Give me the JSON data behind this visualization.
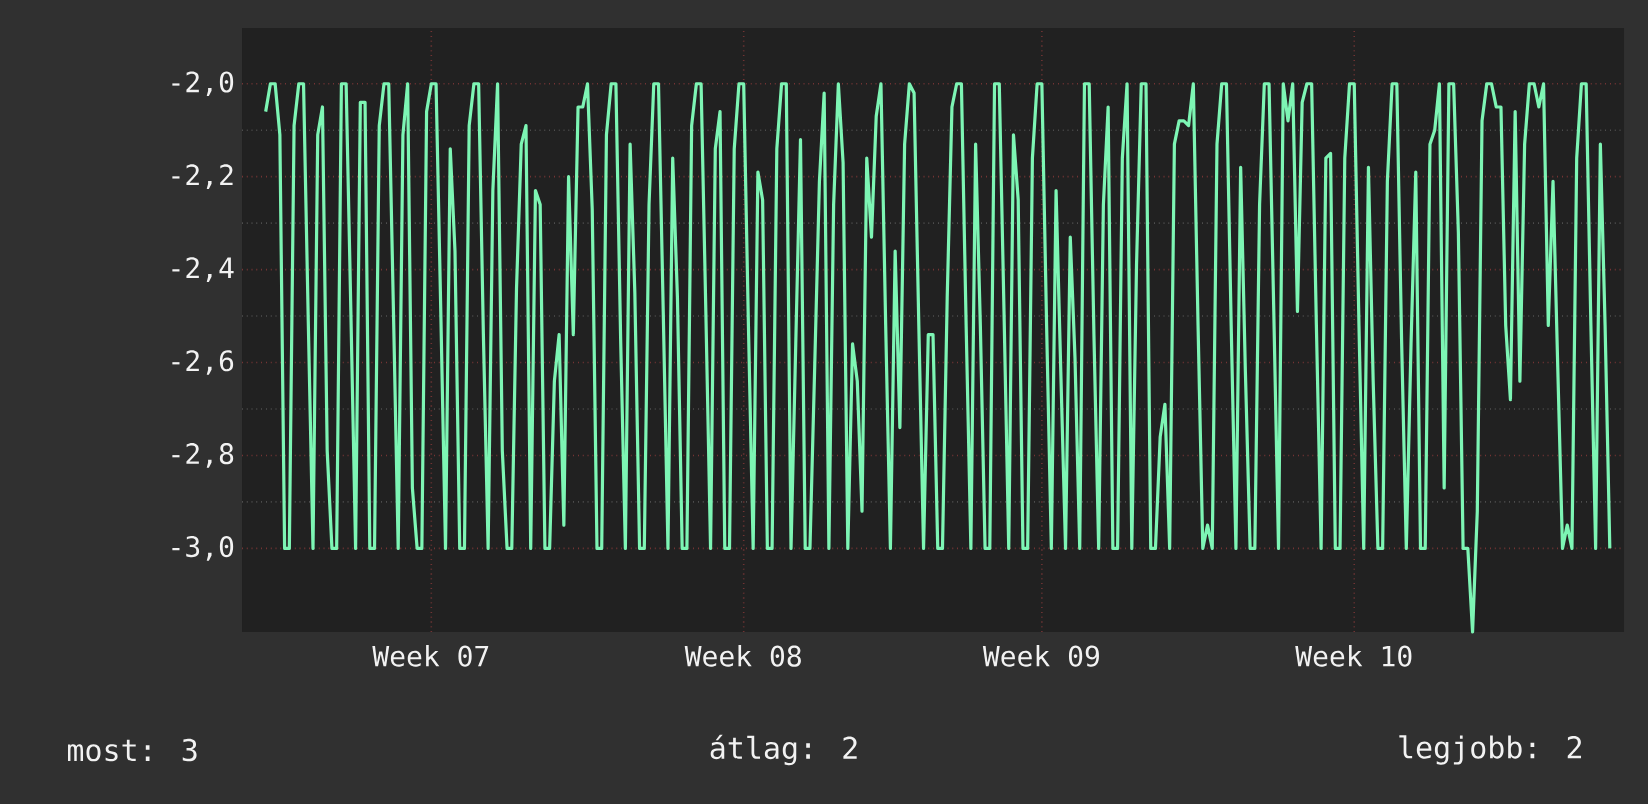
{
  "chart_data": {
    "type": "line",
    "categories": [
      null,
      null,
      null,
      null,
      null,
      null,
      null,
      null,
      null,
      null,
      null,
      null,
      null,
      null,
      null,
      null,
      null,
      null,
      null,
      null,
      null,
      null,
      null,
      null,
      null,
      null,
      null,
      null,
      null,
      null,
      null,
      null,
      null,
      null,
      null,
      "Week 07",
      null,
      null,
      null,
      null,
      null,
      null,
      null,
      null,
      null,
      null,
      null,
      null,
      null,
      null,
      null,
      null,
      null,
      null,
      null,
      null,
      null,
      null,
      null,
      null,
      null,
      null,
      null,
      null,
      null,
      null,
      null,
      null,
      null,
      null,
      null,
      null,
      null,
      null,
      null,
      null,
      null,
      null,
      null,
      null,
      null,
      null,
      null,
      null,
      null,
      null,
      null,
      null,
      null,
      null,
      null,
      null,
      null,
      null,
      null,
      null,
      null,
      null,
      null,
      null,
      null,
      "Week 08",
      null,
      null,
      null,
      null,
      null,
      null,
      null,
      null,
      null,
      null,
      null,
      null,
      null,
      null,
      null,
      null,
      null,
      null,
      null,
      null,
      null,
      null,
      null,
      null,
      null,
      null,
      null,
      null,
      null,
      null,
      null,
      null,
      null,
      null,
      null,
      null,
      null,
      null,
      null,
      null,
      null,
      null,
      null,
      null,
      null,
      null,
      null,
      null,
      null,
      null,
      null,
      null,
      null,
      null,
      null,
      null,
      null,
      null,
      null,
      null,
      null,
      null,
      "Week 09",
      null,
      null,
      null,
      null,
      null,
      null,
      null,
      null,
      null,
      null,
      null,
      null,
      null,
      null,
      null,
      null,
      null,
      null,
      null,
      null,
      null,
      null,
      null,
      null,
      null,
      null,
      null,
      null,
      null,
      null,
      null,
      null,
      null,
      null,
      null,
      null,
      null,
      null,
      null,
      null,
      null,
      null,
      null,
      null,
      null,
      null,
      null,
      null,
      null,
      null,
      null,
      null,
      null,
      null,
      null,
      null,
      null,
      null,
      null,
      null,
      null,
      null,
      null,
      null,
      null,
      "Week 10",
      null,
      null,
      null,
      null,
      null,
      null,
      null,
      null,
      null,
      null,
      null,
      null,
      null,
      null,
      null,
      null,
      null,
      null,
      null,
      null,
      null,
      null,
      null,
      null,
      null,
      null,
      null,
      null,
      null,
      null,
      null,
      null,
      null,
      null,
      null,
      null,
      null,
      null,
      null,
      null,
      null,
      null,
      null,
      null,
      null,
      null,
      null,
      null,
      null,
      null,
      null,
      null,
      null,
      null
    ],
    "ylim": [
      -3.18,
      -1.88
    ],
    "yticks": [
      {
        "value": -3,
        "label": "-3,0"
      },
      {
        "value": -2.8,
        "label": "-2,8"
      },
      {
        "value": -2.6,
        "label": "-2,6"
      },
      {
        "value": -2.4,
        "label": "-2,4"
      },
      {
        "value": -2.2,
        "label": "-2,2"
      },
      {
        "value": -2,
        "label": "-2,0"
      }
    ],
    "grid": true,
    "annotations": [
      "most: 3",
      "átlag: 2",
      "legjobb: 2"
    ],
    "series": [
      {
        "color": "#7df5b4",
        "values": [
          -2.06,
          -2,
          -2,
          -2.11,
          -3,
          -3,
          -2.09,
          -2,
          -2,
          -2.51,
          -3,
          -2.11,
          -2.05,
          -2.79,
          -3,
          -3,
          -2,
          -2,
          -2.49,
          -3,
          -2.04,
          -2.04,
          -3,
          -3,
          -2.09,
          -2,
          -2,
          -2.49,
          -3,
          -2.11,
          -2,
          -2.87,
          -3,
          -3,
          -2.06,
          -2,
          -2,
          -2.49,
          -3,
          -2.14,
          -2.36,
          -3,
          -3,
          -2.09,
          -2,
          -2,
          -2.54,
          -3,
          -2.23,
          -2,
          -2.79,
          -3,
          -3,
          -2.44,
          -2.13,
          -2.09,
          -3,
          -2.23,
          -2.26,
          -3,
          -3,
          -2.64,
          -2.54,
          -2.95,
          -2.2,
          -2.54,
          -2.05,
          -2.05,
          -2,
          -2.27,
          -3,
          -3,
          -2.11,
          -2,
          -2,
          -2.55,
          -3,
          -2.13,
          -2.45,
          -3,
          -3,
          -2.26,
          -2,
          -2,
          -2.49,
          -3,
          -2.16,
          -2.46,
          -3,
          -3,
          -2.09,
          -2,
          -2,
          -2.49,
          -3,
          -2.14,
          -2.06,
          -3,
          -3,
          -2.14,
          -2,
          -2,
          -2.52,
          -3,
          -2.19,
          -2.25,
          -3,
          -3,
          -2.14,
          -2,
          -2,
          -3,
          -2.56,
          -2.12,
          -3,
          -3,
          -2.61,
          -2.21,
          -2.02,
          -3,
          -2.26,
          -2,
          -2.17,
          -3,
          -2.56,
          -2.64,
          -2.92,
          -2.16,
          -2.33,
          -2.07,
          -2,
          -2.52,
          -3,
          -2.36,
          -2.74,
          -2.13,
          -2,
          -2.02,
          -2.52,
          -3,
          -2.54,
          -2.54,
          -3,
          -3,
          -2.46,
          -2.05,
          -2,
          -2,
          -2.52,
          -3,
          -2.13,
          -2.52,
          -3,
          -3,
          -2,
          -2,
          -2.49,
          -3,
          -2.11,
          -2.25,
          -3,
          -3,
          -2.16,
          -2,
          -2,
          -2.52,
          -3,
          -2.23,
          -2.62,
          -3,
          -2.33,
          -2.59,
          -3,
          -2,
          -2,
          -2.54,
          -3,
          -2.26,
          -2.05,
          -3,
          -3,
          -2.16,
          -2,
          -3,
          -2.39,
          -2,
          -2,
          -3,
          -3,
          -2.76,
          -2.69,
          -3,
          -2.13,
          -2.08,
          -2.08,
          -2.09,
          -2,
          -2.52,
          -3,
          -2.95,
          -3,
          -2.13,
          -2,
          -2,
          -2.52,
          -3,
          -2.18,
          -2.62,
          -3,
          -3,
          -2.26,
          -2,
          -2,
          -2.49,
          -3,
          -2,
          -2.08,
          -2,
          -2.49,
          -2.04,
          -2,
          -2,
          -2.52,
          -3,
          -2.16,
          -2.15,
          -3,
          -3,
          -2.16,
          -2,
          -2,
          -2.52,
          -3,
          -2.18,
          -2.64,
          -3,
          -3,
          -2.21,
          -2,
          -2,
          -2.55,
          -3,
          -2.56,
          -2.19,
          -3,
          -3,
          -2.13,
          -2.1,
          -2,
          -2.87,
          -2,
          -2,
          -2.32,
          -3,
          -3,
          -3.18,
          -2.92,
          -2.08,
          -2,
          -2,
          -2.05,
          -2.05,
          -2.52,
          -2.68,
          -2.06,
          -2.64,
          -2.13,
          -2,
          -2,
          -2.05,
          -2,
          -2.52,
          -2.21,
          -2.61,
          -3,
          -2.95,
          -3,
          -2.16,
          -2,
          -2,
          -2.52,
          -3,
          -2.13,
          -2.52,
          -3
        ]
      }
    ]
  }
}
